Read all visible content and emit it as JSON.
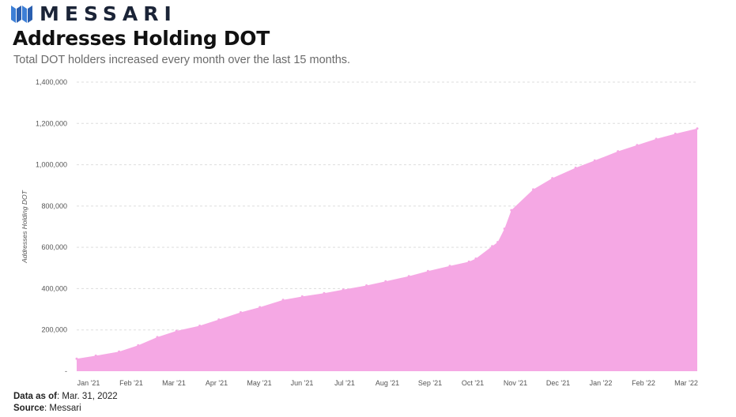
{
  "brand": {
    "name": "MESSARI",
    "logo_icon": "messari-logo-icon"
  },
  "header": {
    "title": "Addresses Holding DOT",
    "subtitle": "Total DOT holders increased every month over the last 15 months."
  },
  "footer": {
    "data_as_of_label": "Data as of",
    "data_as_of_value": ": Mar. 31, 2022",
    "source_label": "Source",
    "source_value": ": Messari"
  },
  "colors": {
    "area_fill": "#f5a8e4",
    "grid": "#dddddd",
    "brand": "#1b2437"
  },
  "chart_data": {
    "type": "area",
    "title": "Addresses Holding DOT",
    "subtitle": "Total DOT holders increased every month over the last 15 months.",
    "xlabel": "",
    "ylabel": "Addresses Holding DOT",
    "ylim": [
      0,
      1400000
    ],
    "y_ticks": [
      0,
      200000,
      400000,
      600000,
      800000,
      1000000,
      1200000,
      1400000
    ],
    "y_tick_labels": [
      "-",
      "200,000",
      "400,000",
      "600,000",
      "800,000",
      "1,000,000",
      "1,200,000",
      "1,400,000"
    ],
    "x_tick_labels": [
      "Jan '21",
      "Feb '21",
      "Mar '21",
      "Apr '21",
      "May '21",
      "Jun '21",
      "Jul '21",
      "Aug '21",
      "Sep '21",
      "Oct '21",
      "Nov '21",
      "Dec '21",
      "Jan '22",
      "Feb '22",
      "Mar '22"
    ],
    "grid": true,
    "legend": "none",
    "series": [
      {
        "x": [
          "2021-01-01",
          "2021-01-15",
          "2021-02-01",
          "2021-02-15",
          "2021-03-01",
          "2021-03-15",
          "2021-04-01",
          "2021-04-15",
          "2021-05-01",
          "2021-05-15",
          "2021-06-01",
          "2021-06-15",
          "2021-07-01",
          "2021-07-15",
          "2021-08-01",
          "2021-08-15",
          "2021-09-01",
          "2021-09-15",
          "2021-10-01",
          "2021-10-15",
          "2021-10-20",
          "2021-11-01",
          "2021-11-05",
          "2021-11-10",
          "2021-11-15",
          "2021-12-01",
          "2021-12-15",
          "2022-01-01",
          "2022-01-15",
          "2022-02-01",
          "2022-02-15",
          "2022-03-01",
          "2022-03-15",
          "2022-03-31"
        ],
        "y": [
          60000,
          75000,
          95000,
          125000,
          165000,
          195000,
          220000,
          250000,
          285000,
          310000,
          345000,
          362000,
          378000,
          395000,
          415000,
          435000,
          460000,
          485000,
          510000,
          530000,
          545000,
          605000,
          625000,
          690000,
          780000,
          880000,
          935000,
          985000,
          1020000,
          1065000,
          1095000,
          1125000,
          1150000,
          1175000
        ]
      }
    ]
  }
}
